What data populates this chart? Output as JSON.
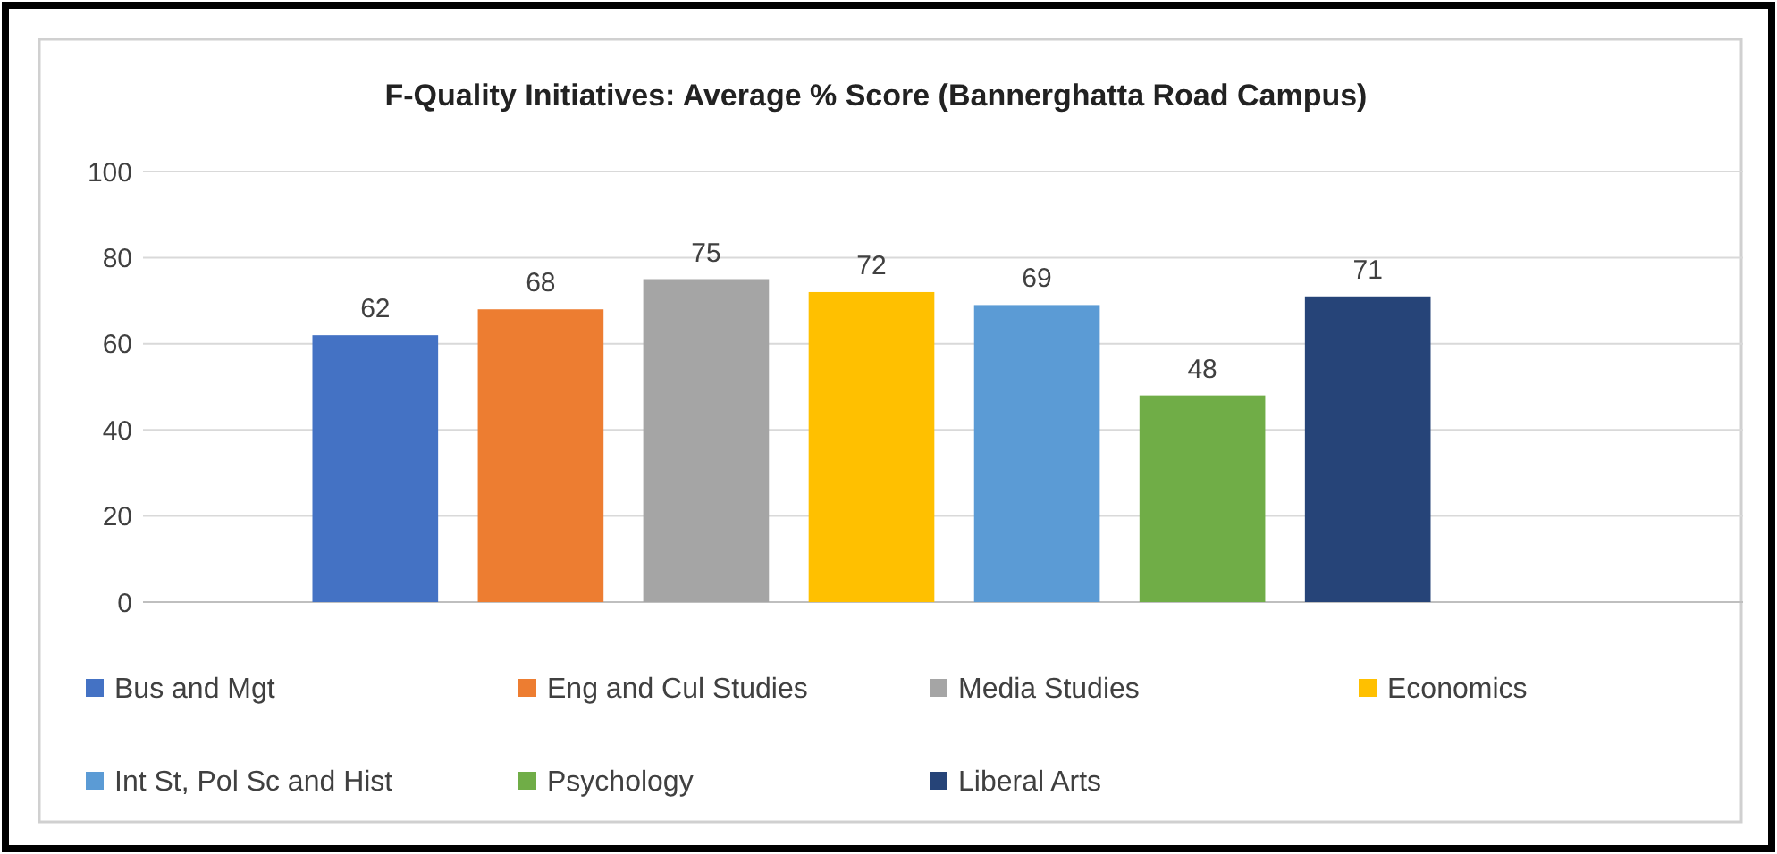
{
  "chart_data": {
    "type": "bar",
    "title": "F-Quality Initiatives: Average % Score  (Bannerghatta Road Campus)",
    "categories": [
      null
    ],
    "series": [
      {
        "name": "Bus and Mgt",
        "color": "#4472c4",
        "values": [
          62
        ]
      },
      {
        "name": "Eng and Cul Studies",
        "color": "#ed7d31",
        "values": [
          68
        ]
      },
      {
        "name": "Media Studies",
        "color": "#a5a5a5",
        "values": [
          75
        ]
      },
      {
        "name": "Economics",
        "color": "#ffc000",
        "values": [
          72
        ]
      },
      {
        "name": "Int St, Pol Sc and Hist",
        "color": "#5b9bd5",
        "values": [
          69
        ]
      },
      {
        "name": "Psychology",
        "color": "#70ad47",
        "values": [
          48
        ]
      },
      {
        "name": "Liberal Arts",
        "color": "#264478",
        "values": [
          71
        ]
      }
    ],
    "ylim": [
      0,
      100
    ],
    "yticks": [
      0,
      20,
      40,
      60,
      80,
      100
    ],
    "grid": "y",
    "legend": "bottom",
    "data_labels": true
  }
}
